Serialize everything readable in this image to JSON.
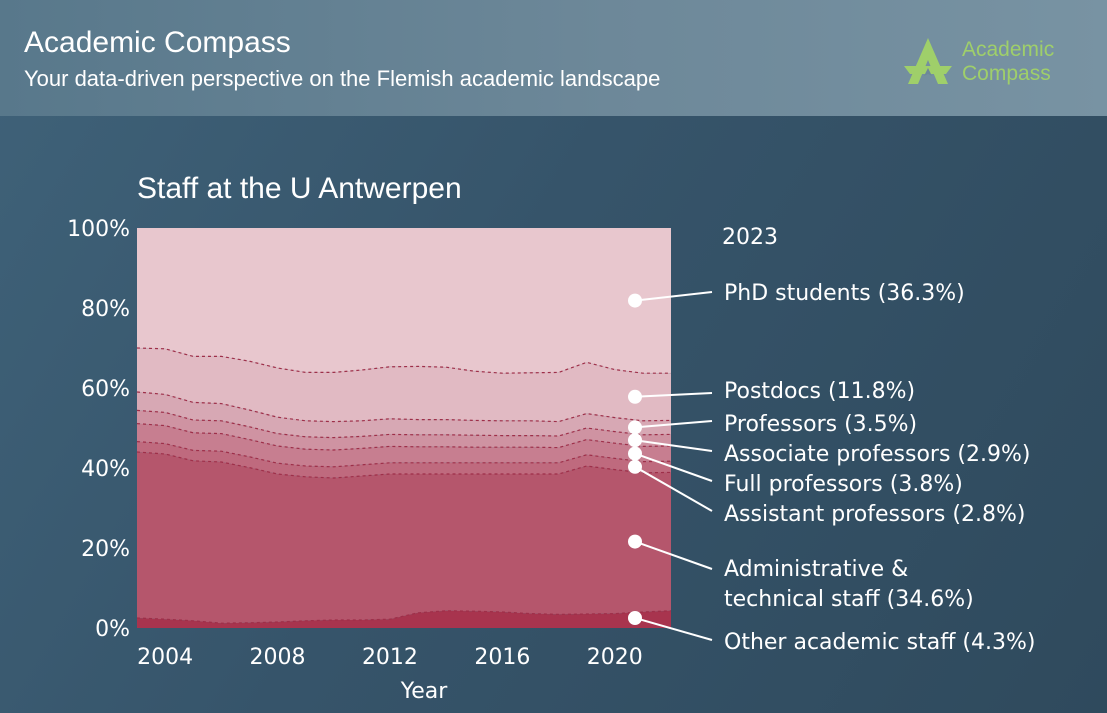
{
  "header": {
    "title": "Academic Compass",
    "subtitle": "Your data-driven perspective on the Flemish academic landscape",
    "logo_text": "Academic\nCompass",
    "logo_icon": "compass-a-icon"
  },
  "colors": {
    "background": "#36546a",
    "header": "#6d8899",
    "logo_green": "#9fcf6a"
  },
  "chart_data": {
    "type": "area",
    "stacked": true,
    "normalized": true,
    "title": "Staff at the U Antwerpen",
    "xlabel": "Year",
    "ylabel": "",
    "x": [
      2003,
      2004,
      2005,
      2006,
      2007,
      2008,
      2009,
      2010,
      2011,
      2012,
      2013,
      2014,
      2015,
      2016,
      2017,
      2018,
      2019,
      2020,
      2021,
      2022
    ],
    "xlim": [
      2003,
      2022
    ],
    "xticks": [
      "2004",
      "2008",
      "2012",
      "2016",
      "2020"
    ],
    "ylim": [
      0,
      100
    ],
    "yticks": [
      "0%",
      "20%",
      "40%",
      "60%",
      "80%",
      "100%"
    ],
    "annotation_year": "2023",
    "series": [
      {
        "name": "Other academic staff",
        "label": "Other academic staff (4.3%)",
        "color": "#a8344e",
        "values": [
          2.5,
          2.2,
          1.8,
          1.2,
          1.3,
          1.5,
          1.8,
          2.0,
          2.0,
          2.2,
          3.8,
          4.3,
          4.2,
          4.0,
          3.6,
          3.4,
          3.5,
          3.6,
          4.0,
          4.3
        ]
      },
      {
        "name": "Administrative & technical staff",
        "label": "Administrative & technical staff (34.6%)",
        "color": "#b5566c",
        "values": [
          41.5,
          41.3,
          40.0,
          40.3,
          38.8,
          37.0,
          36.0,
          35.5,
          36.0,
          36.3,
          34.7,
          34.2,
          34.3,
          34.5,
          34.9,
          35.1,
          37.0,
          36.0,
          34.8,
          34.6
        ]
      },
      {
        "name": "Assistant professors",
        "label": "Assistant professors (2.8%)",
        "color": "#bf6a7e",
        "values": [
          2.6,
          2.6,
          2.6,
          2.7,
          2.7,
          2.7,
          2.7,
          2.8,
          2.8,
          2.8,
          2.8,
          2.8,
          2.8,
          2.8,
          2.8,
          2.8,
          2.8,
          2.8,
          2.8,
          2.8
        ]
      },
      {
        "name": "Full professors",
        "label": "Full professors (3.8%)",
        "color": "#c77e90",
        "values": [
          4.5,
          4.5,
          4.4,
          4.4,
          4.3,
          4.3,
          4.2,
          4.2,
          4.1,
          4.1,
          4.0,
          4.0,
          3.9,
          3.9,
          3.9,
          3.8,
          3.8,
          3.8,
          3.8,
          3.8
        ]
      },
      {
        "name": "Associate professors",
        "label": "Associate professors (2.9%)",
        "color": "#cf93a2",
        "values": [
          3.3,
          3.3,
          3.2,
          3.2,
          3.2,
          3.1,
          3.1,
          3.1,
          3.0,
          3.0,
          3.0,
          3.0,
          3.0,
          2.9,
          2.9,
          2.9,
          2.9,
          2.9,
          2.9,
          2.9
        ]
      },
      {
        "name": "Professors",
        "label": "Professors (3.5%)",
        "color": "#d7a8b4",
        "values": [
          4.6,
          4.5,
          4.4,
          4.3,
          4.2,
          4.1,
          4.0,
          4.0,
          3.9,
          3.9,
          3.8,
          3.8,
          3.7,
          3.7,
          3.7,
          3.6,
          3.6,
          3.5,
          3.5,
          3.5
        ]
      },
      {
        "name": "Postdocs",
        "label": "Postdocs (11.8%)",
        "color": "#e1bac3",
        "values": [
          11.0,
          11.4,
          11.5,
          11.8,
          12.2,
          12.3,
          12.1,
          12.3,
          12.7,
          13.0,
          13.3,
          13.1,
          12.3,
          11.9,
          12.0,
          12.3,
          12.8,
          12.0,
          11.9,
          11.8
        ]
      },
      {
        "name": "PhD students",
        "label": "PhD students (36.3%)",
        "color": "#e8c7ce",
        "values": [
          30.0,
          30.2,
          32.1,
          32.1,
          33.3,
          35.0,
          36.1,
          36.1,
          35.5,
          34.7,
          34.6,
          34.8,
          35.8,
          36.3,
          36.2,
          36.1,
          33.6,
          35.4,
          36.3,
          36.3
        ]
      }
    ]
  }
}
